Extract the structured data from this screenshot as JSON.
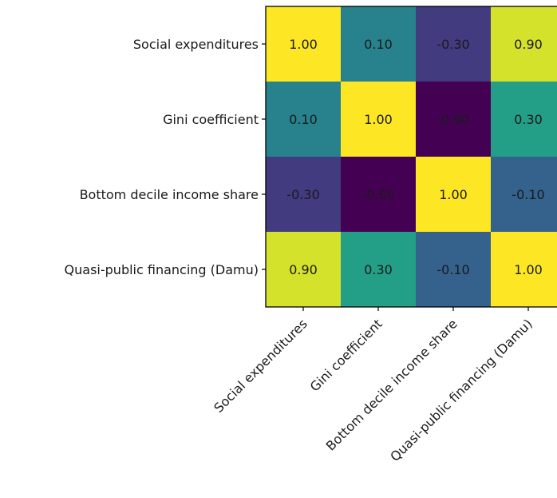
{
  "chart_data": {
    "type": "heatmap",
    "title": "",
    "xlabel": "",
    "ylabel": "",
    "row_labels": [
      "Social expenditures",
      "Gini coefficient",
      "Bottom decile income share",
      "Quasi-public financing (Damu)"
    ],
    "col_labels": [
      "Social expenditures",
      "Gini coefficient",
      "Bottom decile income share",
      "Quasi-public financing (Damu)"
    ],
    "values": [
      [
        1.0,
        0.1,
        -0.3,
        0.9
      ],
      [
        0.1,
        1.0,
        -0.6,
        0.3
      ],
      [
        -0.3,
        -0.6,
        1.0,
        -0.1
      ],
      [
        0.9,
        0.3,
        -0.1,
        1.0
      ]
    ],
    "cell_labels": [
      [
        "1.00",
        "0.10",
        "-0.30",
        "0.90"
      ],
      [
        "0.10",
        "1.00",
        "-0.60",
        "0.30"
      ],
      [
        "-0.30",
        "-0.60",
        "1.00",
        "-0.10"
      ],
      [
        "0.90",
        "0.30",
        "-0.10",
        "1.00"
      ]
    ],
    "value_range": [
      -0.6,
      1.0
    ],
    "colormap": "viridis",
    "grid": false,
    "legend": "none"
  }
}
